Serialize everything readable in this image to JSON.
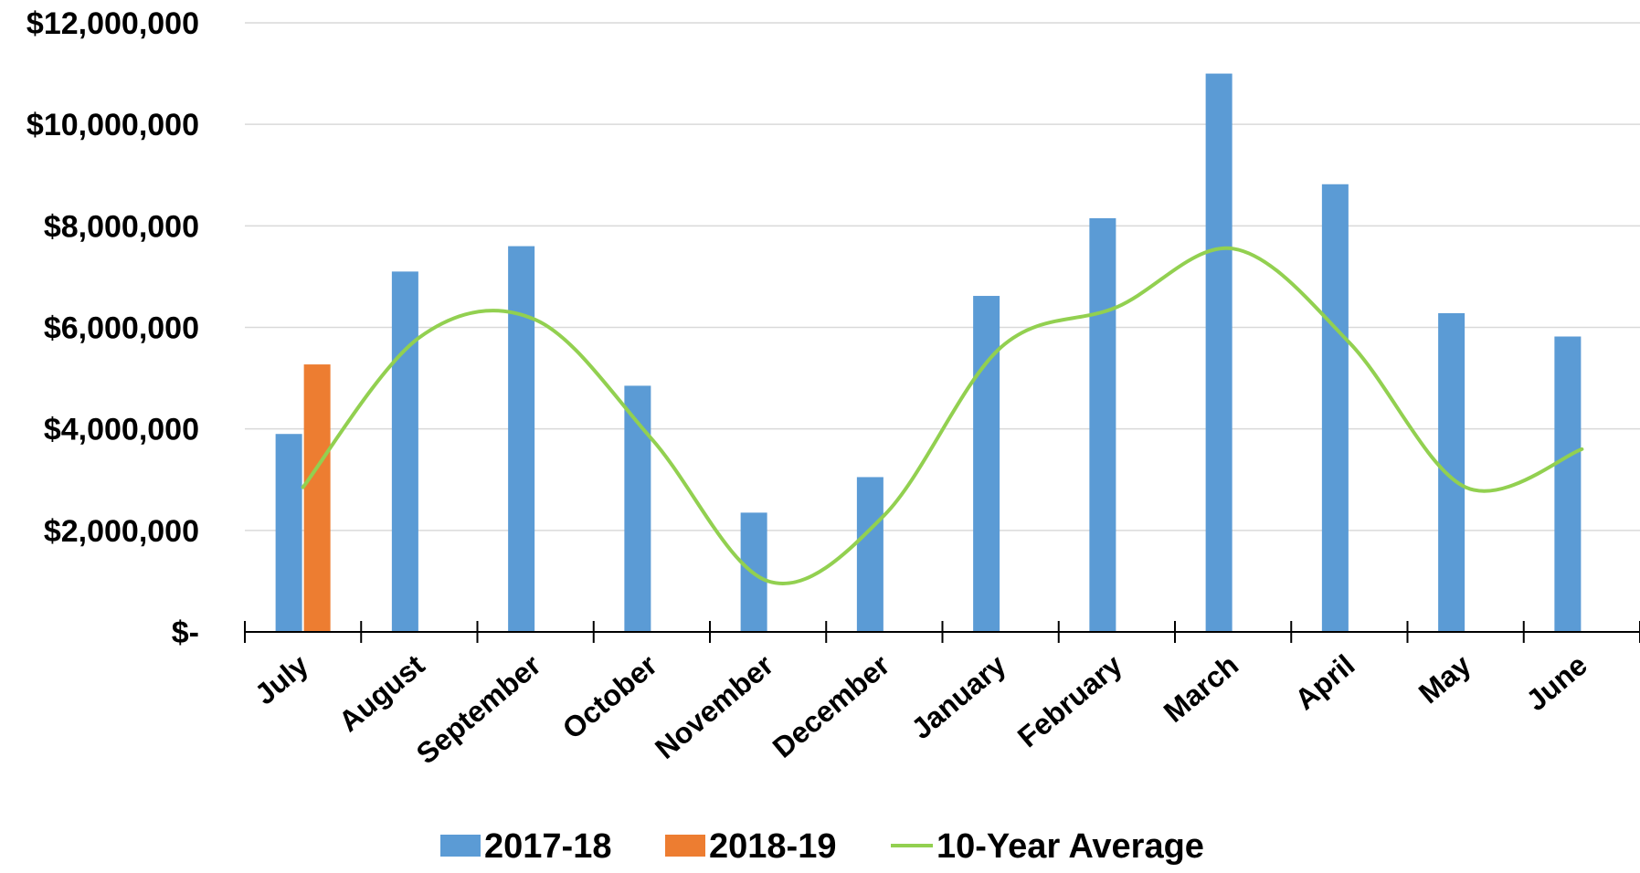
{
  "chart_data": {
    "type": "bar",
    "categories": [
      "July",
      "August",
      "September",
      "October",
      "November",
      "December",
      "January",
      "February",
      "March",
      "April",
      "May",
      "June"
    ],
    "series": [
      {
        "name": "2017-18",
        "type": "bar",
        "color": "#5b9bd5",
        "values": [
          3900000,
          7100000,
          7600000,
          4850000,
          2350000,
          3050000,
          6620000,
          8150000,
          11000000,
          8820000,
          6280000,
          5820000
        ]
      },
      {
        "name": "2018-19",
        "type": "bar",
        "color": "#ed7d31",
        "values": [
          5270000,
          null,
          null,
          null,
          null,
          null,
          null,
          null,
          null,
          null,
          null,
          null
        ]
      },
      {
        "name": "10-Year Average",
        "type": "line",
        "smooth": true,
        "color": "#92d050",
        "values": [
          2850000,
          5800000,
          6150000,
          3800000,
          1000000,
          2300000,
          5600000,
          6400000,
          7550000,
          5700000,
          2850000,
          3600000
        ]
      }
    ],
    "ylim": [
      0,
      12000000
    ],
    "yticks": [
      0,
      2000000,
      4000000,
      6000000,
      8000000,
      10000000,
      12000000
    ],
    "ytick_labels": [
      "$-",
      "$2,000,000",
      "$4,000,000",
      "$6,000,000",
      "$8,000,000",
      "$10,000,000",
      "$12,000,000"
    ],
    "grid": true,
    "legend": "bottom",
    "title": "",
    "xlabel": "",
    "ylabel": ""
  }
}
